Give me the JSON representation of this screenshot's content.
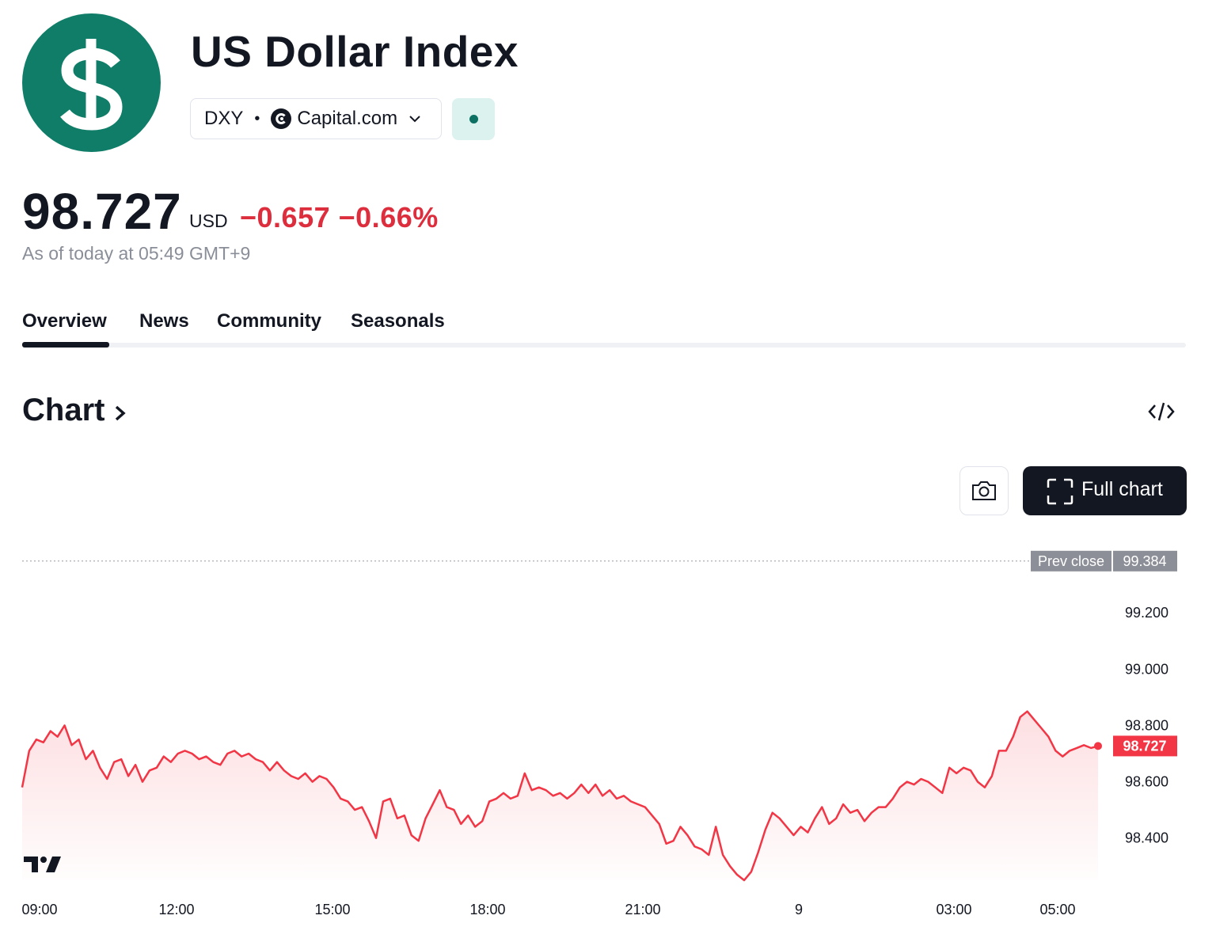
{
  "header": {
    "title": "US Dollar Index",
    "logo_icon": "dollar-sign-icon",
    "symbol": "DXY",
    "separator": "•",
    "exchange": "Capital.com",
    "exchange_icon": "capital-com-logo-icon",
    "dropdown_icon": "chevron-down-icon",
    "market_status_icon": "market-open-dot-icon"
  },
  "quote": {
    "price": "98.727",
    "currency": "USD",
    "change": "−0.657",
    "change_percent": "−0.66%",
    "as_of": "As of today at 05:49 GMT+9"
  },
  "tabs": [
    {
      "label": "Overview",
      "active": true
    },
    {
      "label": "News",
      "active": false
    },
    {
      "label": "Community",
      "active": false
    },
    {
      "label": "Seasonals",
      "active": false
    }
  ],
  "chart_section": {
    "heading": "Chart",
    "embed_icon": "code-embed-icon",
    "snapshot_icon": "camera-icon",
    "full_chart_label": "Full chart",
    "full_chart_icon": "fullscreen-icon",
    "watermark_icon": "tradingview-logo-icon"
  },
  "colors": {
    "brand_green": "#0f7d68",
    "negative_red": "#dd2e3e",
    "line_red": "#f23645",
    "prev_close_gray": "#8c8f97"
  },
  "chart_data": {
    "type": "area",
    "x_ticks": [
      "09:00",
      "12:00",
      "15:00",
      "18:00",
      "21:00",
      "9",
      "03:00",
      "05:00"
    ],
    "y_ticks": [
      "99.200",
      "99.000",
      "98.800",
      "98.600",
      "98.400"
    ],
    "ylim": [
      98.25,
      99.42
    ],
    "prev_close": {
      "label": "Prev close",
      "value": "99.384"
    },
    "last": {
      "label": "98.727",
      "value": 98.727
    },
    "series": [
      {
        "values": [
          98.58,
          98.71,
          98.75,
          98.74,
          98.78,
          98.76,
          98.8,
          98.73,
          98.75,
          98.68,
          98.71,
          98.65,
          98.61,
          98.67,
          98.68,
          98.62,
          98.66,
          98.6,
          98.64,
          98.65,
          98.69,
          98.67,
          98.7,
          98.71,
          98.7,
          98.68,
          98.69,
          98.67,
          98.66,
          98.7,
          98.71,
          98.69,
          98.7,
          98.68,
          98.67,
          98.64,
          98.67,
          98.64,
          98.62,
          98.61,
          98.63,
          98.6,
          98.62,
          98.61,
          98.58,
          98.54,
          98.53,
          98.5,
          98.51,
          98.46,
          98.4,
          98.53,
          98.54,
          98.47,
          98.48,
          98.41,
          98.39,
          98.47,
          98.52,
          98.57,
          98.51,
          98.5,
          98.45,
          98.48,
          98.44,
          98.46,
          98.53,
          98.54,
          98.56,
          98.54,
          98.55,
          98.63,
          98.57,
          98.58,
          98.57,
          98.55,
          98.56,
          98.54,
          98.56,
          98.59,
          98.56,
          98.59,
          98.55,
          98.57,
          98.54,
          98.55,
          98.53,
          98.52,
          98.51,
          98.48,
          98.45,
          98.38,
          98.39,
          98.44,
          98.41,
          98.37,
          98.36,
          98.34,
          98.44,
          98.34,
          98.3,
          98.27,
          98.25,
          98.28,
          98.35,
          98.43,
          98.49,
          98.47,
          98.44,
          98.41,
          98.44,
          98.42,
          98.47,
          98.51,
          98.45,
          98.47,
          98.52,
          98.49,
          98.5,
          98.46,
          98.49,
          98.51,
          98.51,
          98.54,
          98.58,
          98.6,
          98.59,
          98.61,
          98.6,
          98.58,
          98.56,
          98.65,
          98.63,
          98.65,
          98.64,
          98.6,
          98.58,
          98.62,
          98.71,
          98.71,
          98.76,
          98.83,
          98.85,
          98.82,
          98.79,
          98.76,
          98.71,
          98.69,
          98.71,
          98.72,
          98.73,
          98.72,
          98.727
        ]
      }
    ]
  }
}
